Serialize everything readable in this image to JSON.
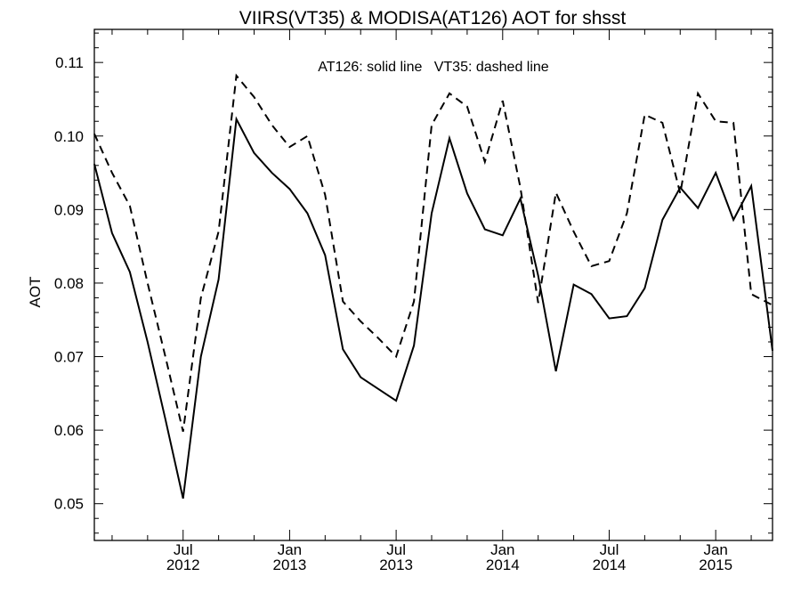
{
  "chart_data": {
    "type": "line",
    "title": "VIIRS(VT35) & MODISA(AT126)  AOT for shsst",
    "ylabel": "AOT",
    "xlabel": "",
    "annotation": "AT126: solid line   VT35: dashed line",
    "ylim": [
      0.045,
      0.1145
    ],
    "yticks": [
      "0.05",
      "0.06",
      "0.07",
      "0.08",
      "0.09",
      "0.10",
      "0.11"
    ],
    "xticks": [
      {
        "month": "Jul",
        "year": "2012",
        "x": 6
      },
      {
        "month": "Jan",
        "year": "2013",
        "x": 12
      },
      {
        "month": "Jul",
        "year": "2013",
        "x": 18
      },
      {
        "month": "Jan",
        "year": "2014",
        "x": 24
      },
      {
        "month": "Jul",
        "year": "2014",
        "x": 30
      },
      {
        "month": "Jan",
        "year": "2015",
        "x": 36
      }
    ],
    "xlim": [
      1,
      39.2
    ],
    "grid": false,
    "series": [
      {
        "name": "AT126",
        "style": "solid",
        "color": "#000000",
        "x": [
          1,
          2,
          3,
          4,
          5,
          6,
          7,
          8,
          9,
          10,
          11,
          12,
          13,
          14,
          15,
          16,
          17,
          18,
          19,
          20,
          21,
          22,
          23,
          24,
          25,
          26,
          27,
          28,
          29,
          30,
          31,
          32,
          33,
          34,
          35,
          36,
          37,
          38,
          39.2
        ],
        "values": [
          0.0962,
          0.0868,
          0.0815,
          0.072,
          0.0615,
          0.0507,
          0.07,
          0.0805,
          0.1023,
          0.0977,
          0.095,
          0.0928,
          0.0895,
          0.0838,
          0.071,
          0.0672,
          0.0656,
          0.064,
          0.0715,
          0.0895,
          0.0997,
          0.0922,
          0.0873,
          0.0865,
          0.0915,
          0.081,
          0.068,
          0.0798,
          0.0785,
          0.0752,
          0.0755,
          0.0793,
          0.0886,
          0.093,
          0.0902,
          0.095,
          0.0886,
          0.0932,
          0.0708
        ]
      },
      {
        "name": "VT35",
        "style": "dashed",
        "color": "#000000",
        "x": [
          1,
          2,
          3,
          4,
          5,
          6,
          7,
          8,
          9,
          10,
          11,
          12,
          13,
          14,
          15,
          16,
          17,
          18,
          19,
          20,
          21,
          22,
          23,
          24,
          25,
          26,
          27,
          28,
          29,
          30,
          31,
          32,
          33,
          34,
          35,
          36,
          37,
          38,
          39.2
        ],
        "values": [
          0.1003,
          0.095,
          0.0905,
          0.08,
          0.07,
          0.0598,
          0.078,
          0.087,
          0.1082,
          0.1053,
          0.1015,
          0.0985,
          0.1,
          0.092,
          0.0775,
          0.0748,
          0.0725,
          0.07,
          0.0775,
          0.1015,
          0.1058,
          0.104,
          0.0965,
          0.1048,
          0.093,
          0.0773,
          0.0923,
          0.087,
          0.0823,
          0.083,
          0.0895,
          0.1029,
          0.1018,
          0.0922,
          0.1058,
          0.102,
          0.1018,
          0.0785,
          0.077
        ]
      }
    ]
  }
}
